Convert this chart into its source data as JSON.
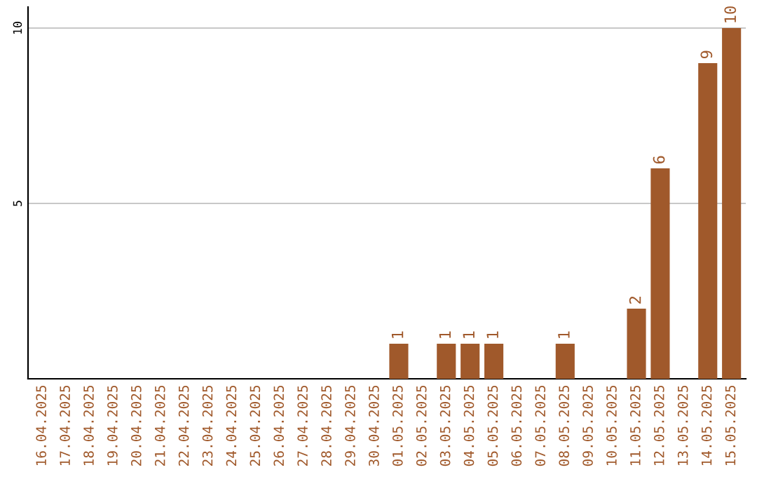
{
  "chart_data": {
    "type": "bar",
    "categories": [
      "16.04.2025",
      "17.04.2025",
      "18.04.2025",
      "19.04.2025",
      "20.04.2025",
      "21.04.2025",
      "22.04.2025",
      "23.04.2025",
      "24.04.2025",
      "25.04.2025",
      "26.04.2025",
      "27.04.2025",
      "28.04.2025",
      "29.04.2025",
      "30.04.2025",
      "01.05.2025",
      "02.05.2025",
      "03.05.2025",
      "04.05.2025",
      "05.05.2025",
      "06.05.2025",
      "07.05.2025",
      "08.05.2025",
      "09.05.2025",
      "10.05.2025",
      "11.05.2025",
      "12.05.2025",
      "13.05.2025",
      "14.05.2025",
      "15.05.2025"
    ],
    "values": [
      0,
      0,
      0,
      0,
      0,
      0,
      0,
      0,
      0,
      0,
      0,
      0,
      0,
      0,
      0,
      1,
      0,
      1,
      1,
      1,
      0,
      0,
      1,
      0,
      0,
      2,
      6,
      0,
      9,
      10
    ],
    "value_labels": [
      null,
      null,
      null,
      null,
      null,
      null,
      null,
      null,
      null,
      null,
      null,
      null,
      null,
      null,
      null,
      "1",
      null,
      "1",
      "1",
      "1",
      null,
      null,
      "1",
      null,
      null,
      "2",
      "6",
      null,
      "9",
      "10"
    ],
    "color": "#a0592b",
    "ylim": [
      0,
      10.6
    ],
    "yticks": [
      5,
      10
    ],
    "grid": "y",
    "legend": false
  }
}
